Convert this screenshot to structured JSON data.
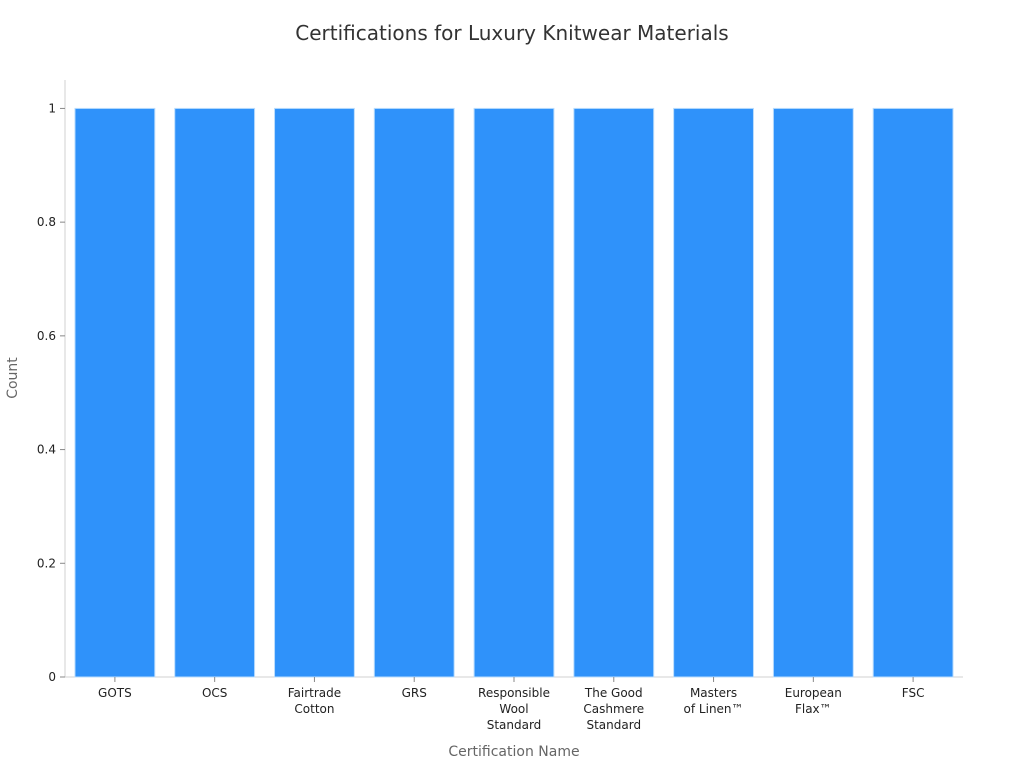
{
  "chart_data": {
    "type": "bar",
    "title": "Certifications for Luxury Knitwear Materials",
    "xlabel": "Certification Name",
    "ylabel": "Count",
    "categories": [
      "GOTS",
      "OCS",
      "Fairtrade Cotton",
      "GRS",
      "Responsible Wool Standard",
      "The Good Cashmere Standard",
      "Masters of Linen™",
      "European Flax™",
      "FSC"
    ],
    "values": [
      1,
      1,
      1,
      1,
      1,
      1,
      1,
      1,
      1
    ],
    "ylim": [
      0,
      1.05
    ],
    "yticks": [
      0,
      0.2,
      0.4,
      0.6,
      0.8,
      1
    ],
    "ytick_labels": [
      "0",
      "0.2",
      "0.4",
      "0.6",
      "0.8",
      "1"
    ],
    "grid": false,
    "colors": {
      "bar": "#2f92fa",
      "bar_edge": "#b9dcfd",
      "axis": "#d0d0d0"
    }
  }
}
